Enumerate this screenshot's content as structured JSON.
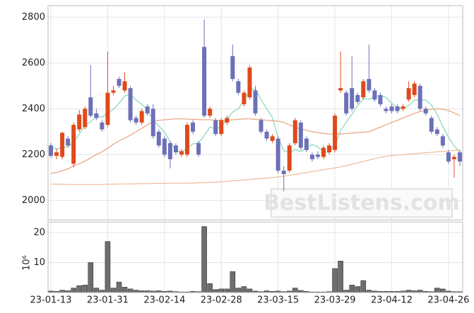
{
  "chart_data": [
    {
      "type": "candlestick",
      "open": [
        2240,
        2195,
        2190,
        2270,
        2160,
        2310,
        2320,
        2450,
        2380,
        2340,
        2330,
        2470,
        2530,
        2480,
        2490,
        2360,
        2340,
        2410,
        2400,
        2300,
        2270,
        2250,
        2240,
        2200,
        2200,
        2340,
        2250,
        2670,
        2370,
        2350,
        2290,
        2340,
        2630,
        2520,
        2420,
        2450,
        2480,
        2350,
        2300,
        2260,
        2270,
        2130,
        2130,
        2250,
        2340,
        2270,
        2200,
        2200,
        2190,
        2210,
        2220,
        2480,
        2470,
        2490,
        2460,
        2450,
        2530,
        2480,
        2460,
        2400,
        2410,
        2410,
        2400,
        2440,
        2460,
        2500,
        2400,
        2360,
        2310,
        2280,
        2210,
        2180,
        2210
      ],
      "high": [
        2250,
        2225,
        2300,
        2280,
        2340,
        2395,
        2410,
        2590,
        2400,
        2350,
        2650,
        2500,
        2540,
        2560,
        2500,
        2370,
        2400,
        2420,
        2420,
        2310,
        2280,
        2260,
        2250,
        2225,
        2340,
        2350,
        2260,
        2790,
        2410,
        2360,
        2360,
        2370,
        2680,
        2530,
        2480,
        2590,
        2500,
        2360,
        2310,
        2290,
        2280,
        2150,
        2250,
        2360,
        2350,
        2280,
        2210,
        2215,
        2240,
        2250,
        2380,
        2650,
        2480,
        2630,
        2470,
        2530,
        2680,
        2490,
        2470,
        2410,
        2420,
        2420,
        2420,
        2520,
        2520,
        2510,
        2410,
        2370,
        2320,
        2290,
        2220,
        2200,
        2220
      ],
      "low": [
        2185,
        2180,
        2180,
        2230,
        2145,
        2300,
        2310,
        2360,
        2350,
        2300,
        2320,
        2460,
        2490,
        2470,
        2340,
        2330,
        2330,
        2370,
        2270,
        2230,
        2190,
        2140,
        2200,
        2190,
        2190,
        2290,
        2190,
        2360,
        2360,
        2280,
        2280,
        2330,
        2520,
        2460,
        2410,
        2440,
        2370,
        2290,
        2260,
        2250,
        2120,
        2040,
        2120,
        2240,
        2220,
        2210,
        2170,
        2180,
        2180,
        2200,
        2210,
        2470,
        2370,
        2390,
        2420,
        2440,
        2470,
        2430,
        2410,
        2380,
        2380,
        2380,
        2390,
        2430,
        2450,
        2390,
        2370,
        2290,
        2280,
        2230,
        2160,
        2100,
        2150
      ],
      "close": [
        2195,
        2210,
        2295,
        2240,
        2330,
        2375,
        2400,
        2370,
        2360,
        2310,
        2470,
        2480,
        2500,
        2520,
        2350,
        2340,
        2390,
        2380,
        2280,
        2240,
        2200,
        2180,
        2210,
        2215,
        2330,
        2300,
        2200,
        2370,
        2400,
        2290,
        2350,
        2360,
        2530,
        2470,
        2470,
        2580,
        2380,
        2300,
        2270,
        2280,
        2130,
        2115,
        2240,
        2350,
        2230,
        2220,
        2180,
        2190,
        2230,
        2240,
        2370,
        2490,
        2380,
        2400,
        2430,
        2520,
        2480,
        2440,
        2420,
        2390,
        2390,
        2390,
        2410,
        2490,
        2510,
        2400,
        2380,
        2300,
        2290,
        2240,
        2170,
        2190,
        2170
      ],
      "up_color": "#e04a1a",
      "down_color": "#6c70b8",
      "series": [
        {
          "color": "#8fd8c0",
          "values": [
            2230,
            2225,
            2230,
            2235,
            2254,
            2290,
            2328,
            2343,
            2367,
            2363,
            2382,
            2398,
            2424,
            2456,
            2464,
            2438,
            2420,
            2396,
            2348,
            2326,
            2298,
            2256,
            2222,
            2209,
            2227,
            2247,
            2251,
            2283,
            2320,
            2312,
            2322,
            2354,
            2386,
            2400,
            2436,
            2482,
            2486,
            2440,
            2400,
            2362,
            2272,
            2219,
            2207,
            2223,
            2213,
            2231,
            2244,
            2234,
            2210,
            2212,
            2242,
            2304,
            2342,
            2376,
            2414,
            2444,
            2442,
            2454,
            2458,
            2450,
            2424,
            2406,
            2400,
            2414,
            2438,
            2440,
            2438,
            2416,
            2376,
            2322,
            2276,
            2238,
            2212
          ]
        },
        {
          "color": "#e8a888",
          "values": [
            2118,
            2122,
            2130,
            2138,
            2150,
            2160,
            2172,
            2185,
            2200,
            2212,
            2228,
            2245,
            2260,
            2272,
            2285,
            2300,
            2315,
            2330,
            2345,
            2350,
            2352,
            2354,
            2356,
            2356,
            2355,
            2354,
            2353,
            2352,
            2352,
            2350,
            2350,
            2350,
            2352,
            2354,
            2356,
            2356,
            2354,
            2352,
            2350,
            2348,
            2346,
            2340,
            2330,
            2320,
            2312,
            2306,
            2300,
            2296,
            2292,
            2290,
            2290,
            2290,
            2292,
            2294,
            2296,
            2298,
            2300,
            2310,
            2320,
            2330,
            2340,
            2350,
            2360,
            2370,
            2380,
            2388,
            2394,
            2398,
            2400,
            2398,
            2392,
            2382,
            2370
          ]
        },
        {
          "color": "#f0c0a0",
          "values": [
            2072,
            2071,
            2071,
            2070,
            2070,
            2070,
            2070,
            2070,
            2070,
            2070,
            2071,
            2071,
            2072,
            2072,
            2072,
            2073,
            2073,
            2073,
            2074,
            2074,
            2074,
            2075,
            2075,
            2075,
            2076,
            2076,
            2077,
            2078,
            2079,
            2080,
            2082,
            2084,
            2086,
            2088,
            2090,
            2092,
            2094,
            2096,
            2098,
            2100,
            2103,
            2106,
            2110,
            2114,
            2118,
            2122,
            2126,
            2130,
            2134,
            2138,
            2142,
            2146,
            2152,
            2158,
            2164,
            2170,
            2176,
            2182,
            2188,
            2192,
            2196,
            2198,
            2200,
            2202,
            2204,
            2206,
            2208,
            2210,
            2212,
            2214,
            2216,
            2218,
            2220
          ]
        }
      ],
      "ylim": [
        1915,
        2850
      ],
      "yticks": [
        2000,
        2200,
        2400,
        2600,
        2800
      ],
      "grid": true,
      "watermark": "BestListens.com"
    },
    {
      "type": "bar",
      "categories": [
        "23-01-13",
        null,
        null,
        null,
        null,
        null,
        null,
        null,
        null,
        null,
        "23-01-31",
        null,
        null,
        null,
        null,
        null,
        null,
        null,
        null,
        null,
        "23-02-14",
        null,
        null,
        null,
        null,
        null,
        null,
        null,
        null,
        null,
        "23-02-28",
        null,
        null,
        null,
        null,
        null,
        null,
        null,
        null,
        null,
        "23-03-15",
        null,
        null,
        null,
        null,
        null,
        null,
        null,
        null,
        null,
        "23-03-29",
        null,
        null,
        null,
        null,
        null,
        null,
        null,
        null,
        null,
        "23-04-12",
        null,
        null,
        null,
        null,
        null,
        null,
        null,
        null,
        null,
        "23-04-26",
        null,
        null
      ],
      "values": [
        0.5,
        0.4,
        0.8,
        0.6,
        1.5,
        2.3,
        2.5,
        10,
        1.5,
        0.8,
        17,
        1.5,
        3.5,
        1.8,
        1.2,
        0.8,
        0.6,
        0.6,
        0.5,
        0.6,
        0.4,
        0.5,
        0.3,
        0.2,
        0.2,
        0.4,
        0.3,
        22,
        3,
        1,
        1.2,
        1.2,
        7,
        1.5,
        2,
        1.2,
        0.5,
        0.3,
        0.6,
        0.4,
        0.5,
        0.3,
        0.5,
        1.5,
        0.7,
        0.4,
        0.2,
        0.2,
        0.2,
        0.3,
        8,
        10.5,
        0.8,
        2.5,
        2,
        4,
        0.8,
        0.5,
        0.4,
        0.4,
        0.4,
        0.4,
        0.5,
        0.8,
        0.6,
        0.8,
        0.4,
        0.3,
        1.5,
        1.2,
        0.5,
        0.3,
        0.3
      ],
      "color": "#6e6e6e",
      "ylim": [
        0,
        23.5
      ],
      "yticks": [
        10,
        20
      ],
      "ylabel": "10⁶",
      "grid": true
    }
  ]
}
